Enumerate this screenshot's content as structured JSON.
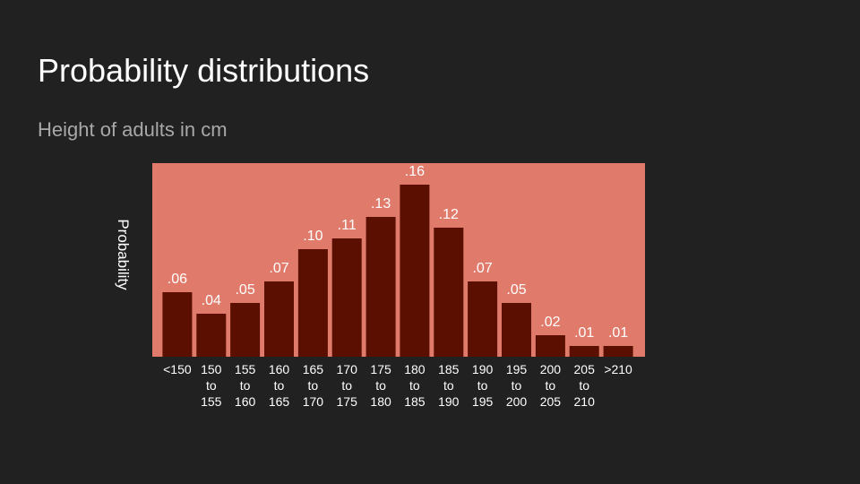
{
  "slide": {
    "title": "Probability distributions",
    "subtitle": "Height of adults in cm"
  },
  "colors": {
    "background": "#212121",
    "plot_background": "#e07b6c",
    "bar": "#5a0f00",
    "text": "#ffffff",
    "subtitle": "#a8a8a8"
  },
  "chart_data": {
    "type": "bar",
    "title": "",
    "xlabel": "",
    "ylabel": "Probability",
    "ylim": [
      0,
      0.18
    ],
    "grid": false,
    "categories": [
      [
        "<150"
      ],
      [
        "150",
        "to",
        "155"
      ],
      [
        "155",
        "to",
        "160"
      ],
      [
        "160",
        "to",
        "165"
      ],
      [
        "165",
        "to",
        "170"
      ],
      [
        "170",
        "to",
        "175"
      ],
      [
        "175",
        "to",
        "180"
      ],
      [
        "180",
        "to",
        "185"
      ],
      [
        "185",
        "to",
        "190"
      ],
      [
        "190",
        "to",
        "195"
      ],
      [
        "195",
        "to",
        "200"
      ],
      [
        "200",
        "to",
        "205"
      ],
      [
        "205",
        "to",
        "210"
      ],
      [
        ">210"
      ]
    ],
    "values": [
      0.06,
      0.04,
      0.05,
      0.07,
      0.1,
      0.11,
      0.13,
      0.16,
      0.12,
      0.07,
      0.05,
      0.02,
      0.01,
      0.01
    ],
    "value_labels": [
      ".06",
      ".04",
      ".05",
      ".07",
      ".10",
      ".11",
      ".13",
      ".16",
      ".12",
      ".07",
      ".05",
      ".02",
      ".01",
      ".01"
    ]
  }
}
